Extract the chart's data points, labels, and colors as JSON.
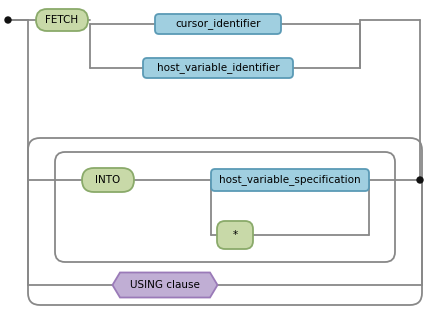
{
  "bg_color": "#ffffff",
  "node_blue_fill": "#a0cfe0",
  "node_blue_edge": "#5a9ab5",
  "node_green_fill": "#c8d9a8",
  "node_green_edge": "#8aaa6a",
  "node_purple_fill": "#c0aed4",
  "node_purple_edge": "#9a7ab8",
  "line_color": "#888888",
  "dot_color": "#111111",
  "fetch_label": "FETCH",
  "cursor_label": "cursor_identifier",
  "host_var_id_label": "host_variable_identifier",
  "into_label": "INTO",
  "host_var_spec_label": "host_variable_specification",
  "star_label": "*",
  "using_label": "USING clause",
  "font_size": 7.5
}
